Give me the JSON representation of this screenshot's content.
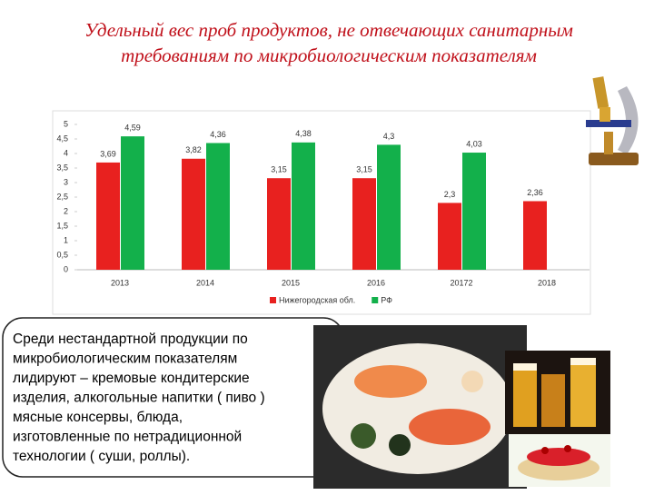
{
  "header": {
    "title_lines": [
      "Удельный вес проб продуктов, не отвечающих санитарным",
      "требованиям по микробиологическим показателям"
    ]
  },
  "chart_data": {
    "type": "bar",
    "categories": [
      "2013",
      "2014",
      "2015",
      "2016",
      "20172",
      "2018"
    ],
    "series": [
      {
        "name": "Нижегородская обл.",
        "color": "#e8211f",
        "values": [
          3.69,
          3.82,
          3.15,
          3.15,
          2.3,
          2.36
        ],
        "value_labels": [
          "3,69",
          "3,82",
          "3,15",
          "3,15",
          "2,3",
          "2,36"
        ]
      },
      {
        "name": "РФ",
        "color": "#13b04b",
        "values": [
          4.59,
          4.36,
          4.38,
          4.3,
          4.03,
          null
        ],
        "value_labels": [
          "4,59",
          "4,36",
          "4,38",
          "4,3",
          "4,03",
          null
        ]
      }
    ],
    "ylim": [
      0,
      5
    ],
    "yticks": [
      0,
      {
        "value": 0.5,
        "label": "0,5"
      },
      1,
      {
        "value": 1.5,
        "label": "1,5"
      },
      2,
      {
        "value": 2.5,
        "label": "2,5"
      },
      3,
      {
        "value": 3.5,
        "label": "3,5"
      },
      4,
      {
        "value": 4.5,
        "label": "4,5"
      },
      5
    ],
    "grid": false,
    "legend": "bottom"
  },
  "text_box": {
    "lines": [
      "Среди нестандартной продукции по",
      "микробиологическим показателям",
      "лидируют – кремовые кондитерские",
      "изделия,  алкогольные напитки ( пиво )",
      "мясные консервы, блюда,",
      "изготовленные по нетрадиционной",
      "технологии ( суши, роллы)."
    ]
  }
}
